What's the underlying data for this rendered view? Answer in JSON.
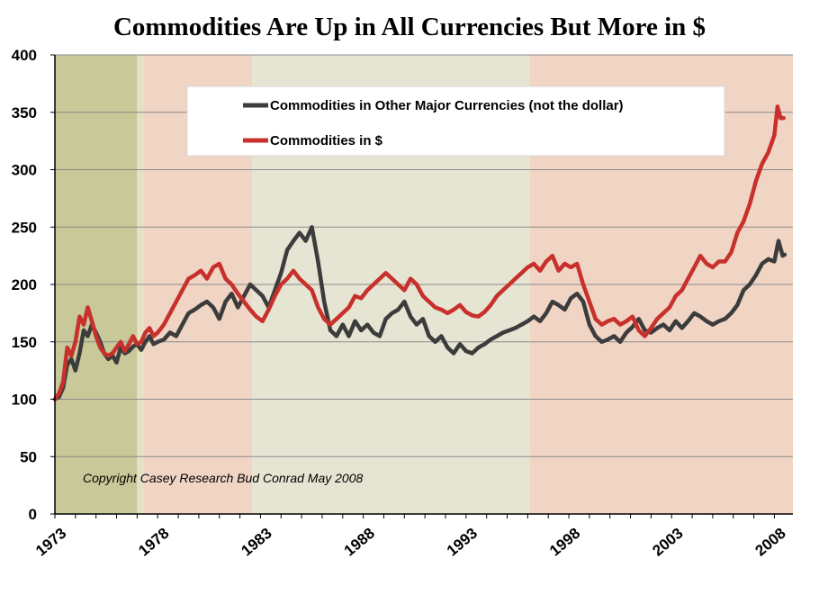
{
  "chart_data": {
    "type": "line",
    "title": "Commodities Are Up in All Currencies But More in $",
    "xlabel": "",
    "ylabel": "",
    "xlim": [
      1973,
      2008.9
    ],
    "ylim": [
      0,
      400
    ],
    "yticks": [
      0,
      50,
      100,
      150,
      200,
      250,
      300,
      350,
      400
    ],
    "xticks": [
      1973,
      1978,
      1983,
      1988,
      1993,
      1998,
      2003,
      2008
    ],
    "grid": true,
    "legend_position": "top-center",
    "annotation": "Copyright Casey Research Bud Conrad  May 2008",
    "background_bands": [
      {
        "from": 1973,
        "to": 1977.0,
        "color": "#c8c898"
      },
      {
        "from": 1977.0,
        "to": 1977.3,
        "color": "#e6e0c4"
      },
      {
        "from": 1977.3,
        "to": 1982.6,
        "color": "#f0d4c4"
      },
      {
        "from": 1982.6,
        "to": 1996.1,
        "color": "#e6e4d2"
      },
      {
        "from": 1996.1,
        "to": 2008.9,
        "color": "#f0d4c4"
      }
    ],
    "series": [
      {
        "name": "Commodities in Other Major Currencies (not the dollar)",
        "color": "#3c3c3c",
        "points": [
          [
            1973.0,
            100
          ],
          [
            1973.2,
            102
          ],
          [
            1973.4,
            110
          ],
          [
            1973.6,
            130
          ],
          [
            1973.8,
            135
          ],
          [
            1974.0,
            125
          ],
          [
            1974.2,
            140
          ],
          [
            1974.4,
            160
          ],
          [
            1974.6,
            155
          ],
          [
            1974.8,
            165
          ],
          [
            1975.0,
            158
          ],
          [
            1975.2,
            150
          ],
          [
            1975.4,
            140
          ],
          [
            1975.6,
            135
          ],
          [
            1975.8,
            138
          ],
          [
            1976.0,
            132
          ],
          [
            1976.2,
            145
          ],
          [
            1976.4,
            140
          ],
          [
            1976.6,
            142
          ],
          [
            1976.8,
            146
          ],
          [
            1977.0,
            148
          ],
          [
            1977.2,
            143
          ],
          [
            1977.4,
            150
          ],
          [
            1977.6,
            155
          ],
          [
            1977.8,
            148
          ],
          [
            1978.0,
            150
          ],
          [
            1978.3,
            152
          ],
          [
            1978.6,
            158
          ],
          [
            1978.9,
            155
          ],
          [
            1979.2,
            165
          ],
          [
            1979.5,
            175
          ],
          [
            1979.8,
            178
          ],
          [
            1980.1,
            182
          ],
          [
            1980.4,
            185
          ],
          [
            1980.7,
            180
          ],
          [
            1981.0,
            170
          ],
          [
            1981.3,
            185
          ],
          [
            1981.6,
            192
          ],
          [
            1981.9,
            180
          ],
          [
            1982.2,
            190
          ],
          [
            1982.5,
            200
          ],
          [
            1982.8,
            195
          ],
          [
            1983.1,
            190
          ],
          [
            1983.4,
            180
          ],
          [
            1983.7,
            195
          ],
          [
            1984.0,
            210
          ],
          [
            1984.3,
            230
          ],
          [
            1984.6,
            238
          ],
          [
            1984.9,
            245
          ],
          [
            1985.2,
            238
          ],
          [
            1985.5,
            250
          ],
          [
            1985.8,
            220
          ],
          [
            1986.1,
            185
          ],
          [
            1986.4,
            160
          ],
          [
            1986.7,
            155
          ],
          [
            1987.0,
            165
          ],
          [
            1987.3,
            155
          ],
          [
            1987.6,
            168
          ],
          [
            1987.9,
            160
          ],
          [
            1988.2,
            165
          ],
          [
            1988.5,
            158
          ],
          [
            1988.8,
            155
          ],
          [
            1989.1,
            170
          ],
          [
            1989.4,
            175
          ],
          [
            1989.7,
            178
          ],
          [
            1990.0,
            185
          ],
          [
            1990.3,
            172
          ],
          [
            1990.6,
            165
          ],
          [
            1990.9,
            170
          ],
          [
            1991.2,
            155
          ],
          [
            1991.5,
            150
          ],
          [
            1991.8,
            155
          ],
          [
            1992.1,
            145
          ],
          [
            1992.4,
            140
          ],
          [
            1992.7,
            148
          ],
          [
            1993.0,
            142
          ],
          [
            1993.3,
            140
          ],
          [
            1993.6,
            145
          ],
          [
            1993.9,
            148
          ],
          [
            1994.2,
            152
          ],
          [
            1994.5,
            155
          ],
          [
            1994.8,
            158
          ],
          [
            1995.1,
            160
          ],
          [
            1995.4,
            162
          ],
          [
            1995.7,
            165
          ],
          [
            1996.0,
            168
          ],
          [
            1996.3,
            172
          ],
          [
            1996.6,
            168
          ],
          [
            1996.9,
            175
          ],
          [
            1997.2,
            185
          ],
          [
            1997.5,
            182
          ],
          [
            1997.8,
            178
          ],
          [
            1998.1,
            188
          ],
          [
            1998.4,
            192
          ],
          [
            1998.7,
            185
          ],
          [
            1999.0,
            165
          ],
          [
            1999.3,
            155
          ],
          [
            1999.6,
            150
          ],
          [
            1999.9,
            152
          ],
          [
            2000.2,
            155
          ],
          [
            2000.5,
            150
          ],
          [
            2000.8,
            158
          ],
          [
            2001.1,
            163
          ],
          [
            2001.4,
            170
          ],
          [
            2001.7,
            160
          ],
          [
            2002.0,
            158
          ],
          [
            2002.3,
            162
          ],
          [
            2002.6,
            165
          ],
          [
            2002.9,
            160
          ],
          [
            2003.2,
            168
          ],
          [
            2003.5,
            162
          ],
          [
            2003.8,
            168
          ],
          [
            2004.1,
            175
          ],
          [
            2004.4,
            172
          ],
          [
            2004.7,
            168
          ],
          [
            2005.0,
            165
          ],
          [
            2005.3,
            168
          ],
          [
            2005.6,
            170
          ],
          [
            2005.9,
            175
          ],
          [
            2006.2,
            182
          ],
          [
            2006.5,
            195
          ],
          [
            2006.8,
            200
          ],
          [
            2007.1,
            208
          ],
          [
            2007.4,
            218
          ],
          [
            2007.7,
            222
          ],
          [
            2008.0,
            220
          ],
          [
            2008.2,
            238
          ],
          [
            2008.4,
            225
          ],
          [
            2008.5,
            226
          ]
        ]
      },
      {
        "name": "Commodities in $",
        "color": "#c8302c",
        "points": [
          [
            1973.0,
            100
          ],
          [
            1973.2,
            105
          ],
          [
            1973.4,
            115
          ],
          [
            1973.6,
            145
          ],
          [
            1973.8,
            138
          ],
          [
            1974.0,
            150
          ],
          [
            1974.2,
            172
          ],
          [
            1974.4,
            165
          ],
          [
            1974.6,
            180
          ],
          [
            1974.8,
            168
          ],
          [
            1975.0,
            155
          ],
          [
            1975.2,
            145
          ],
          [
            1975.4,
            140
          ],
          [
            1975.6,
            138
          ],
          [
            1975.8,
            140
          ],
          [
            1976.0,
            145
          ],
          [
            1976.2,
            150
          ],
          [
            1976.4,
            142
          ],
          [
            1976.6,
            148
          ],
          [
            1976.8,
            155
          ],
          [
            1977.0,
            148
          ],
          [
            1977.2,
            150
          ],
          [
            1977.4,
            158
          ],
          [
            1977.6,
            162
          ],
          [
            1977.8,
            155
          ],
          [
            1978.0,
            158
          ],
          [
            1978.3,
            165
          ],
          [
            1978.6,
            175
          ],
          [
            1978.9,
            185
          ],
          [
            1979.2,
            195
          ],
          [
            1979.5,
            205
          ],
          [
            1979.8,
            208
          ],
          [
            1980.1,
            212
          ],
          [
            1980.4,
            205
          ],
          [
            1980.7,
            215
          ],
          [
            1981.0,
            218
          ],
          [
            1981.3,
            205
          ],
          [
            1981.6,
            200
          ],
          [
            1981.9,
            192
          ],
          [
            1982.2,
            185
          ],
          [
            1982.5,
            178
          ],
          [
            1982.8,
            172
          ],
          [
            1983.1,
            168
          ],
          [
            1983.4,
            178
          ],
          [
            1983.7,
            190
          ],
          [
            1984.0,
            200
          ],
          [
            1984.3,
            205
          ],
          [
            1984.6,
            212
          ],
          [
            1984.9,
            205
          ],
          [
            1985.2,
            200
          ],
          [
            1985.5,
            195
          ],
          [
            1985.8,
            180
          ],
          [
            1986.1,
            170
          ],
          [
            1986.4,
            165
          ],
          [
            1986.7,
            170
          ],
          [
            1987.0,
            175
          ],
          [
            1987.3,
            180
          ],
          [
            1987.6,
            190
          ],
          [
            1987.9,
            188
          ],
          [
            1988.2,
            195
          ],
          [
            1988.5,
            200
          ],
          [
            1988.8,
            205
          ],
          [
            1989.1,
            210
          ],
          [
            1989.4,
            205
          ],
          [
            1989.7,
            200
          ],
          [
            1990.0,
            195
          ],
          [
            1990.3,
            205
          ],
          [
            1990.6,
            200
          ],
          [
            1990.9,
            190
          ],
          [
            1991.2,
            185
          ],
          [
            1991.5,
            180
          ],
          [
            1991.8,
            178
          ],
          [
            1992.1,
            175
          ],
          [
            1992.4,
            178
          ],
          [
            1992.7,
            182
          ],
          [
            1993.0,
            176
          ],
          [
            1993.3,
            173
          ],
          [
            1993.6,
            172
          ],
          [
            1993.9,
            176
          ],
          [
            1994.2,
            182
          ],
          [
            1994.5,
            190
          ],
          [
            1994.8,
            195
          ],
          [
            1995.1,
            200
          ],
          [
            1995.4,
            205
          ],
          [
            1995.7,
            210
          ],
          [
            1996.0,
            215
          ],
          [
            1996.3,
            218
          ],
          [
            1996.6,
            212
          ],
          [
            1996.9,
            220
          ],
          [
            1997.2,
            225
          ],
          [
            1997.5,
            212
          ],
          [
            1997.8,
            218
          ],
          [
            1998.1,
            215
          ],
          [
            1998.4,
            218
          ],
          [
            1998.7,
            200
          ],
          [
            1999.0,
            185
          ],
          [
            1999.3,
            170
          ],
          [
            1999.6,
            165
          ],
          [
            1999.9,
            168
          ],
          [
            2000.2,
            170
          ],
          [
            2000.5,
            165
          ],
          [
            2000.8,
            168
          ],
          [
            2001.1,
            172
          ],
          [
            2001.4,
            160
          ],
          [
            2001.7,
            155
          ],
          [
            2002.0,
            162
          ],
          [
            2002.3,
            170
          ],
          [
            2002.6,
            175
          ],
          [
            2002.9,
            180
          ],
          [
            2003.2,
            190
          ],
          [
            2003.5,
            195
          ],
          [
            2003.8,
            205
          ],
          [
            2004.1,
            215
          ],
          [
            2004.4,
            225
          ],
          [
            2004.7,
            218
          ],
          [
            2005.0,
            215
          ],
          [
            2005.3,
            220
          ],
          [
            2005.6,
            220
          ],
          [
            2005.9,
            228
          ],
          [
            2006.2,
            245
          ],
          [
            2006.5,
            255
          ],
          [
            2006.8,
            270
          ],
          [
            2007.1,
            290
          ],
          [
            2007.4,
            305
          ],
          [
            2007.7,
            315
          ],
          [
            2008.0,
            330
          ],
          [
            2008.15,
            355
          ],
          [
            2008.3,
            345
          ],
          [
            2008.45,
            345
          ]
        ]
      }
    ]
  }
}
